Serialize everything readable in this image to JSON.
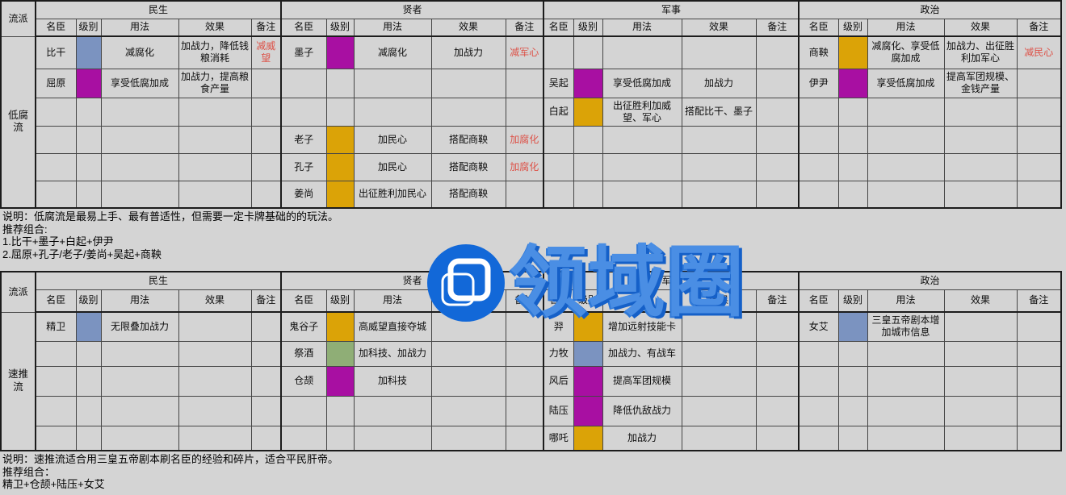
{
  "watermark": {
    "text": "领域圈",
    "circle_color": "#1268d8",
    "text_color": "#4a8ee4",
    "shadow_color": "#1560c8"
  },
  "table_layout": {
    "corner_header": "流派",
    "groups": [
      "民生",
      "贤者",
      "军事",
      "政治"
    ],
    "sub_headers": [
      "名臣",
      "级别",
      "用法",
      "效果",
      "备注"
    ]
  },
  "level_colors": {
    "blue": "#7b93c0",
    "purple": "#a80fa2",
    "gold": "#dba307",
    "green": "#8fae76"
  },
  "note_red_color": "#dd5147",
  "tables": [
    {
      "style": "低腐流",
      "rows": [
        {
          "sections": [
            {
              "name": "比干",
              "level": "blue",
              "usage": "减腐化",
              "effect": "加战力，降低钱粮消耗",
              "note": "减威望",
              "note_red": true
            },
            {
              "name": "墨子",
              "level": "purple",
              "usage": "减腐化",
              "effect": "加战力",
              "note": "减军心",
              "note_red": true
            },
            {},
            {
              "name": "商鞅",
              "level": "gold",
              "usage": "减腐化、享受低腐加成",
              "effect": "加战力、出征胜利加军心",
              "note": "减民心",
              "note_red": true
            }
          ]
        },
        {
          "sections": [
            {
              "name": "屈原",
              "level": "purple",
              "usage": "享受低腐加成",
              "effect": "加战力，提高粮食产量"
            },
            {},
            {
              "name": "吴起",
              "level": "purple",
              "usage": "享受低腐加成",
              "effect": "加战力"
            },
            {
              "name": "伊尹",
              "level": "purple",
              "usage": "享受低腐加成",
              "effect": "提高军团规模、金钱产量"
            }
          ]
        },
        {
          "sections": [
            {},
            {},
            {
              "name": "白起",
              "level": "gold",
              "usage": "出征胜利加威望、军心",
              "effect": "搭配比干、墨子"
            },
            {}
          ]
        },
        {
          "sections": [
            {},
            {
              "name": "老子",
              "level": "gold",
              "usage": "加民心",
              "effect": "搭配商鞅",
              "note": "加腐化",
              "note_red": true
            },
            {},
            {}
          ]
        },
        {
          "sections": [
            {},
            {
              "name": "孔子",
              "level": "gold",
              "usage": "加民心",
              "effect": "搭配商鞅",
              "note": "加腐化",
              "note_red": true
            },
            {},
            {}
          ]
        },
        {
          "sections": [
            {},
            {
              "name": "姜尚",
              "level": "gold",
              "usage": "出征胜利加民心",
              "effect": "搭配商鞅"
            },
            {},
            {}
          ]
        }
      ],
      "notes": [
        "说明：低腐流是最易上手、最有普适性，但需要一定卡牌基础的的玩法。",
        "推荐组合:",
        "1.比干+墨子+白起+伊尹",
        "2.屈原+孔子/老子/姜尚+吴起+商鞅"
      ]
    },
    {
      "style": "速推流",
      "rows": [
        {
          "sections": [
            {
              "name": "精卫",
              "level": "blue",
              "usage": "无限叠加战力"
            },
            {
              "name": "鬼谷子",
              "level": "gold",
              "usage": "高威望直接夺城"
            },
            {
              "name": "羿",
              "level": "gold",
              "usage": "增加远射技能卡"
            },
            {
              "name": "女艾",
              "level": "blue",
              "usage": "三皇五帝剧本增加城市信息"
            }
          ]
        },
        {
          "sections": [
            {},
            {
              "name": "祭酒",
              "level": "green",
              "usage": "加科技、加战力"
            },
            {
              "name": "力牧",
              "level": "blue",
              "usage": "加战力、有战车"
            },
            {}
          ]
        },
        {
          "sections": [
            {},
            {
              "name": "仓颉",
              "level": "purple",
              "usage": "加科技"
            },
            {
              "name": "风后",
              "level": "purple",
              "usage": "提高军团规模"
            },
            {}
          ]
        },
        {
          "sections": [
            {},
            {},
            {
              "name": "陆压",
              "level": "purple",
              "usage": "降低仇敌战力"
            },
            {}
          ]
        },
        {
          "sections": [
            {},
            {},
            {
              "name": "哪吒",
              "level": "gold",
              "usage": "加战力"
            },
            {}
          ]
        }
      ],
      "notes": [
        "说明：速推流适合用三皇五帝剧本刷名臣的经验和碎片，适合平民肝帝。",
        "推荐组合：",
        "精卫+仓颉+陆压+女艾"
      ]
    }
  ]
}
